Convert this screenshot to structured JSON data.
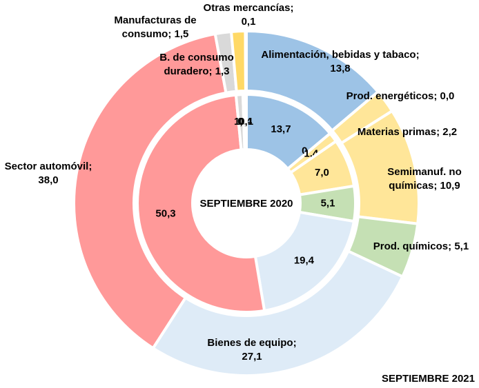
{
  "chart_data": {
    "type": "donut",
    "categories": [
      "Alimentación, bebidas y tabaco",
      "Prod. energéticos",
      "Materias primas",
      "Semimanuf. no químicas",
      "Prod. químicos",
      "Bienes de equipo",
      "Sector automóvil",
      "Manufacturas de consumo",
      "B. de consumo duradero",
      "Otras mercancías"
    ],
    "colors": [
      "#9dc3e6",
      "#bdd7ee",
      "#ffe699",
      "#ffe699",
      "#c5e0b4",
      "#deebf7",
      "#ff9999",
      "#d9d9d9",
      "#ffd966",
      "#ffc000"
    ],
    "label_separator": "; ",
    "series": [
      {
        "name": "SEPTIEMBRE 2021",
        "ring": "outer",
        "values": [
          13.8,
          0.0,
          2.2,
          10.9,
          5.1,
          27.1,
          38.0,
          1.5,
          1.3,
          0.1
        ],
        "value_labels": [
          "13,8",
          "0,0",
          "2,2",
          "10,9",
          "5,1",
          "27,1",
          "38,0",
          "1,5",
          "1,3",
          "0,1"
        ]
      },
      {
        "name": "SEPTIEMBRE 2020",
        "ring": "inner",
        "values": [
          13.7,
          0.0,
          1.4,
          7.0,
          5.1,
          19.4,
          50.3,
          1.0,
          0.4,
          0.1
        ],
        "value_labels": [
          "13,7",
          "0,0",
          "1,4",
          "7,0",
          "5,1",
          "19,4",
          "50,3",
          "1,0",
          "0,4",
          "0,1"
        ]
      }
    ]
  }
}
